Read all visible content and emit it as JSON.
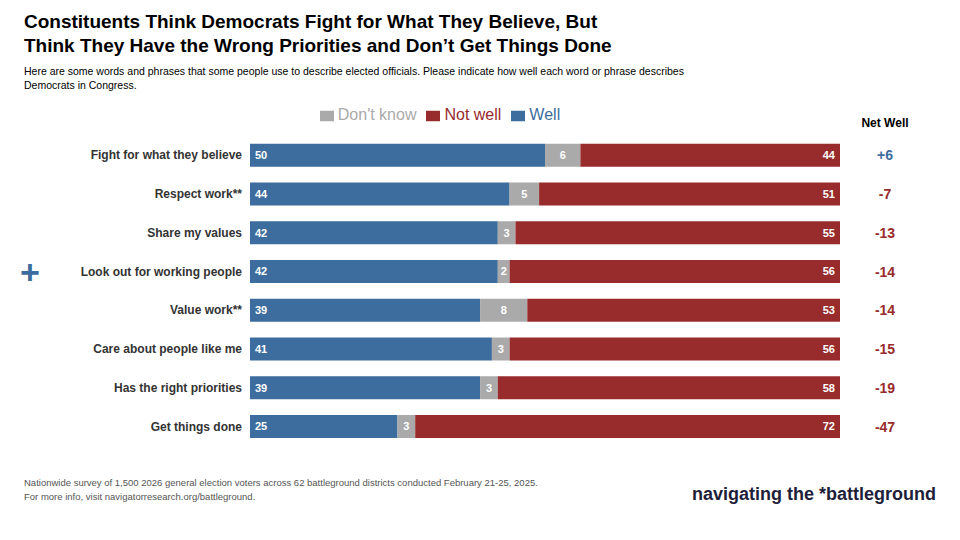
{
  "chart_data": {
    "type": "bar",
    "orientation": "horizontal",
    "stacked": true,
    "data_labels": true,
    "tick_labels": "y",
    "grid": false,
    "legend": "top",
    "title": [
      "Constituents Think Democrats Fight for What They Believe, But",
      "Think They Have the Wrong Priorities and Don’t Get Things Done"
    ],
    "subtitle": [
      "Here are some words and phrases that some people use to describe elected officials. Please indicate how well each word or phrase describes",
      "Democrats in Congress."
    ],
    "categories": [
      "Fight for what they believe",
      "Respect work**",
      "Share my values",
      "Look out for working people",
      "Value work**",
      "Care about people like me",
      "Has the right priorities",
      "Get things done"
    ],
    "series": [
      {
        "name": "Well",
        "color": "#3d6d9e",
        "values": [
          50,
          44,
          42,
          42,
          39,
          41,
          39,
          25
        ]
      },
      {
        "name": "Don't know",
        "color": "#aaaaaa",
        "values": [
          6,
          5,
          3,
          2,
          8,
          3,
          3,
          3
        ]
      },
      {
        "name": "Not well",
        "color": "#982b2b",
        "values": [
          44,
          51,
          55,
          56,
          53,
          56,
          58,
          72
        ]
      }
    ],
    "xlim": [
      0,
      100
    ],
    "net_well": {
      "label": "Net Well",
      "values": [
        6,
        -7,
        -13,
        -14,
        -14,
        -15,
        -19,
        -47
      ],
      "value_labels": [
        "+6",
        "-7",
        "-13",
        "-14",
        "-14",
        "-15",
        "-19",
        "-47"
      ],
      "colors": [
        "#3d6d9e",
        "#982b2b",
        "#982b2b",
        "#982b2b",
        "#982b2b",
        "#982b2b",
        "#982b2b",
        "#982b2b"
      ]
    },
    "annotations": [
      {
        "text": "+",
        "category": "Look out for working people",
        "color": "#3d6d9e"
      },
      {
        "text": "Nationwide survey of 1,500 2026 general election voters across 62 battleground districts conducted February 21-25, 2025."
      },
      {
        "text": "For more info, visit navigatorresearch.org/battleground."
      },
      {
        "text": "navigating the *battleground"
      }
    ]
  }
}
